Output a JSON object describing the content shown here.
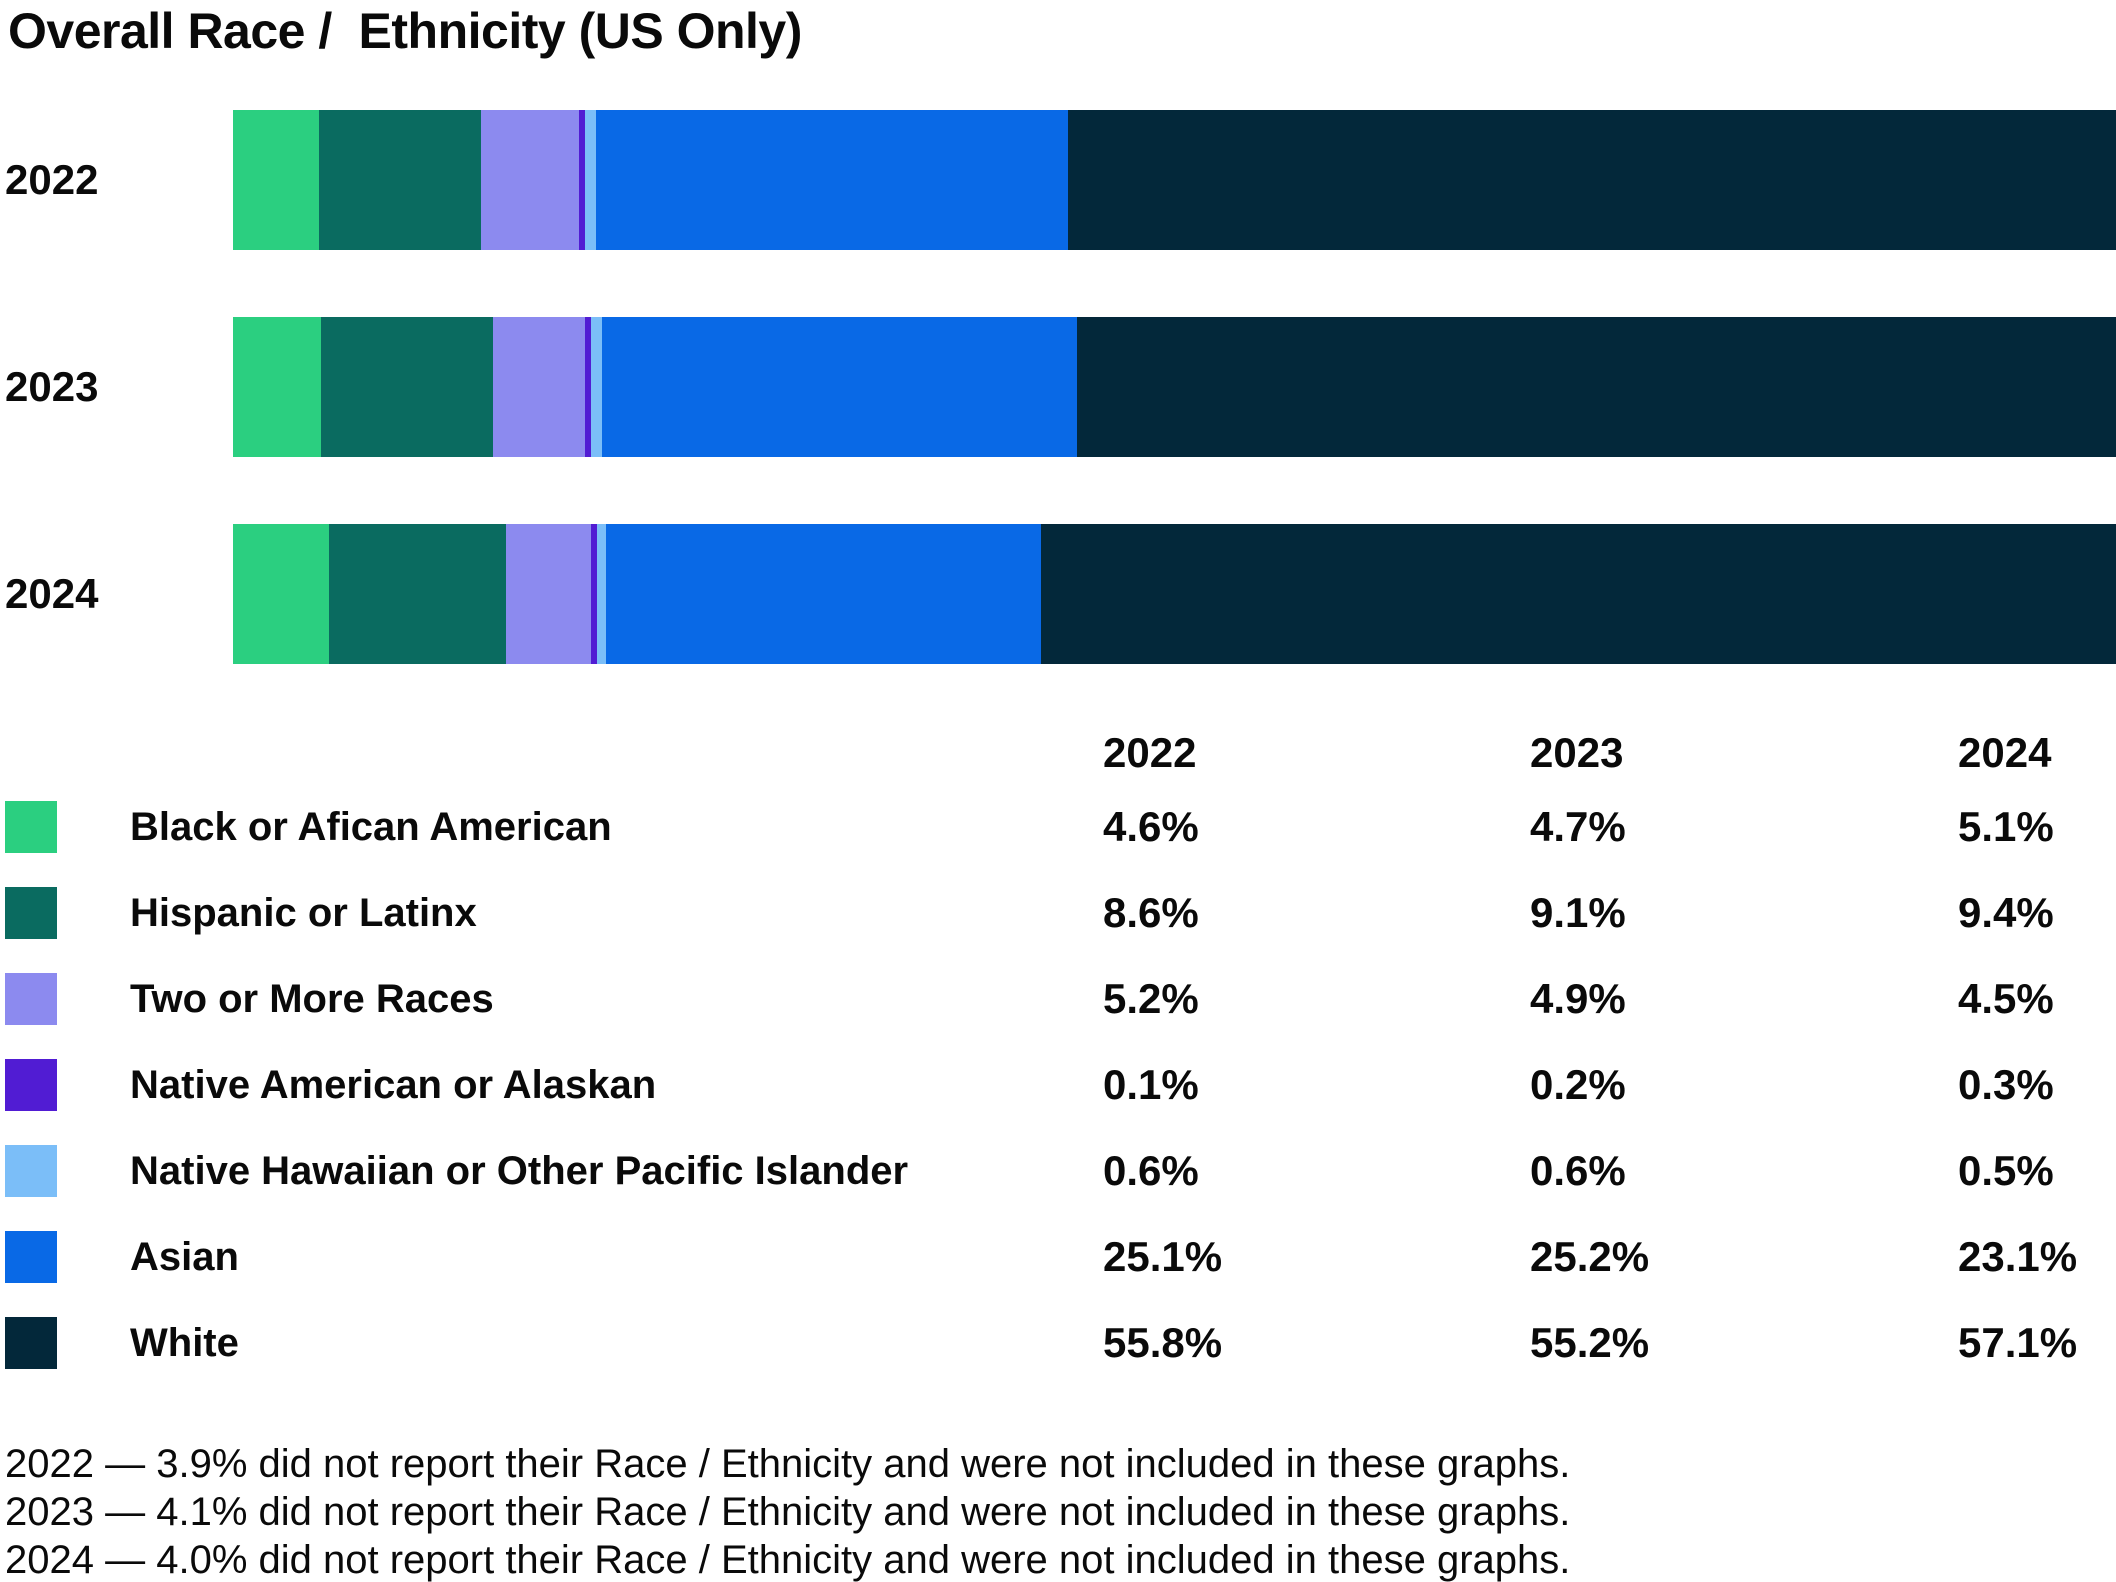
{
  "title": "Overall Race /  Ethnicity (US Only)",
  "colors": {
    "background": "#ffffff",
    "text": "#0a0a0a"
  },
  "chart_data": {
    "type": "bar",
    "orientation": "horizontal",
    "stacked": true,
    "title": "Overall Race /  Ethnicity (US Only)",
    "categories": [
      "2022",
      "2023",
      "2024"
    ],
    "series": [
      {
        "name": "Black or Afican American",
        "color": "#2BCF80",
        "values": [
          4.6,
          4.7,
          5.1
        ]
      },
      {
        "name": "Hispanic or Latinx",
        "color": "#0A6B60",
        "values": [
          8.6,
          9.1,
          9.4
        ]
      },
      {
        "name": "Two or More Races",
        "color": "#8C8AEF",
        "values": [
          5.2,
          4.9,
          4.5
        ]
      },
      {
        "name": "Native American or Alaskan",
        "color": "#511CD3",
        "values": [
          0.1,
          0.2,
          0.3
        ]
      },
      {
        "name": "Native Hawaiian or Other Pacific Islander",
        "color": "#7BBEF8",
        "values": [
          0.6,
          0.6,
          0.5
        ]
      },
      {
        "name": "Asian",
        "color": "#0969E6",
        "values": [
          25.1,
          25.2,
          23.1
        ]
      },
      {
        "name": "White",
        "color": "#03283A",
        "values": [
          55.8,
          55.2,
          57.1
        ]
      }
    ],
    "xlim": [
      0,
      100
    ],
    "value_format": "percent",
    "axis_labels_hidden": true,
    "grid": false,
    "legend_position": "bottom-table"
  },
  "table": {
    "year_headers": [
      "2022",
      "2023",
      "2024"
    ],
    "rows": [
      {
        "label": "Black or Afican American",
        "values": [
          "4.6%",
          "4.7%",
          "5.1%"
        ]
      },
      {
        "label": "Hispanic or Latinx",
        "values": [
          "8.6%",
          "9.1%",
          "9.4%"
        ]
      },
      {
        "label": "Two or More Races",
        "values": [
          "5.2%",
          "4.9%",
          "4.5%"
        ]
      },
      {
        "label": "Native American or Alaskan",
        "values": [
          "0.1%",
          "0.2%",
          "0.3%"
        ]
      },
      {
        "label": "Native Hawaiian or Other Pacific Islander",
        "values": [
          "0.6%",
          "0.6%",
          "0.5%"
        ]
      },
      {
        "label": "Asian",
        "values": [
          "25.1%",
          "25.2%",
          "23.1%"
        ]
      },
      {
        "label": "White",
        "values": [
          "55.8%",
          "55.2%",
          "57.1%"
        ]
      }
    ]
  },
  "footnotes": [
    "2022 — 3.9% did not report their Race / Ethnicity and were not included in these graphs.",
    "2023 — 4.1% did not report their Race / Ethnicity and were not included in these graphs.",
    "2024 — 4.0% did not report their Race / Ethnicity and were not included in these graphs."
  ]
}
